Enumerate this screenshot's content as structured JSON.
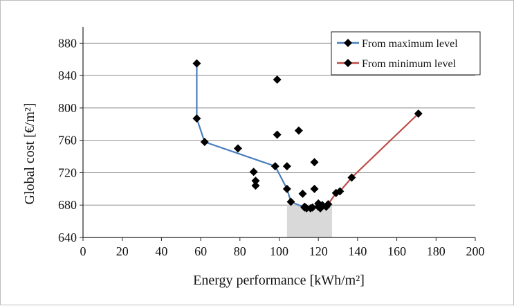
{
  "chart_data": {
    "type": "scatter",
    "title": "",
    "xlabel": "Energy performance [kWh/m²]",
    "ylabel": "Global cost [€/m²]",
    "xlim": [
      0,
      200
    ],
    "ylim": [
      640,
      900
    ],
    "xticks": [
      0,
      20,
      40,
      60,
      80,
      100,
      120,
      140,
      160,
      180,
      200
    ],
    "yticks": [
      640,
      680,
      720,
      760,
      800,
      840,
      880
    ],
    "grid": "horizontal",
    "legend_position": "top-right",
    "shaded_range_x": [
      104,
      127
    ],
    "colors": {
      "max_series": "#4a7ebb",
      "min_series": "#be4b48",
      "markers": "#000000",
      "shade": "#d9d9d9",
      "grid": "#8c8c8c"
    },
    "series": [
      {
        "name": "From maximum level",
        "marker": "diamond",
        "x": [
          58,
          58,
          62,
          98,
          104,
          106,
          113
        ],
        "y": [
          855,
          787,
          758,
          728,
          700,
          684,
          677
        ]
      },
      {
        "name": "From minimum level",
        "marker": "diamond",
        "x": [
          125,
          129,
          131,
          137,
          171
        ],
        "y": [
          681,
          695,
          697,
          714,
          793
        ]
      }
    ],
    "points": {
      "x": [
        99,
        99,
        110,
        79,
        87,
        88,
        88,
        104,
        118,
        112,
        118,
        113,
        114,
        116,
        117,
        120,
        120,
        121,
        122,
        124
      ],
      "y": [
        835,
        767,
        772,
        750,
        721,
        710,
        704,
        728,
        733,
        694,
        700,
        678,
        676,
        676,
        677,
        678,
        682,
        676,
        680,
        678
      ]
    }
  }
}
